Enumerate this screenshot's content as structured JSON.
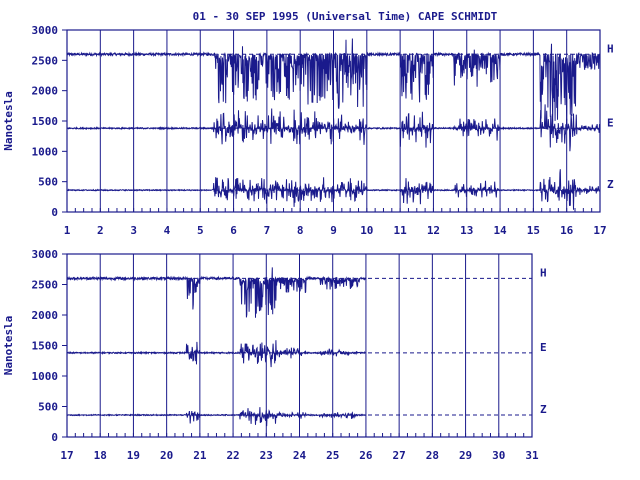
{
  "title": "01 - 30 SEP 1995 (Universal Time) CAPE SCHMIDT",
  "colors": {
    "plot": "#1a1a8c",
    "background": "#ffffff"
  },
  "chart_data": [
    {
      "type": "line",
      "panel": "top",
      "ylabel": "Nanotesla",
      "ylim": [
        0,
        3000
      ],
      "yticks": [
        0,
        500,
        1000,
        1500,
        2000,
        2500,
        3000
      ],
      "xlim": [
        1,
        17
      ],
      "xticks": [
        1,
        2,
        3,
        4,
        5,
        6,
        7,
        8,
        9,
        10,
        11,
        12,
        13,
        14,
        15,
        16,
        17
      ],
      "grid": "vertical lines at each day",
      "series": [
        {
          "name": "H",
          "baseline": 2600
        },
        {
          "name": "E",
          "baseline": 1380
        },
        {
          "name": "Z",
          "baseline": 360
        }
      ],
      "data_extent": [
        1,
        17
      ]
    },
    {
      "type": "line",
      "panel": "bottom",
      "ylabel": "Nanotesla",
      "ylim": [
        0,
        3000
      ],
      "yticks": [
        0,
        500,
        1000,
        1500,
        2000,
        2500,
        3000
      ],
      "xlim": [
        17,
        31
      ],
      "xticks": [
        17,
        18,
        19,
        20,
        21,
        22,
        23,
        24,
        25,
        26,
        27,
        28,
        29,
        30,
        31
      ],
      "grid": "vertical lines at each day",
      "series": [
        {
          "name": "H",
          "baseline": 2600
        },
        {
          "name": "E",
          "baseline": 1380
        },
        {
          "name": "Z",
          "baseline": 360
        }
      ],
      "data_extent": [
        17,
        26
      ]
    }
  ]
}
